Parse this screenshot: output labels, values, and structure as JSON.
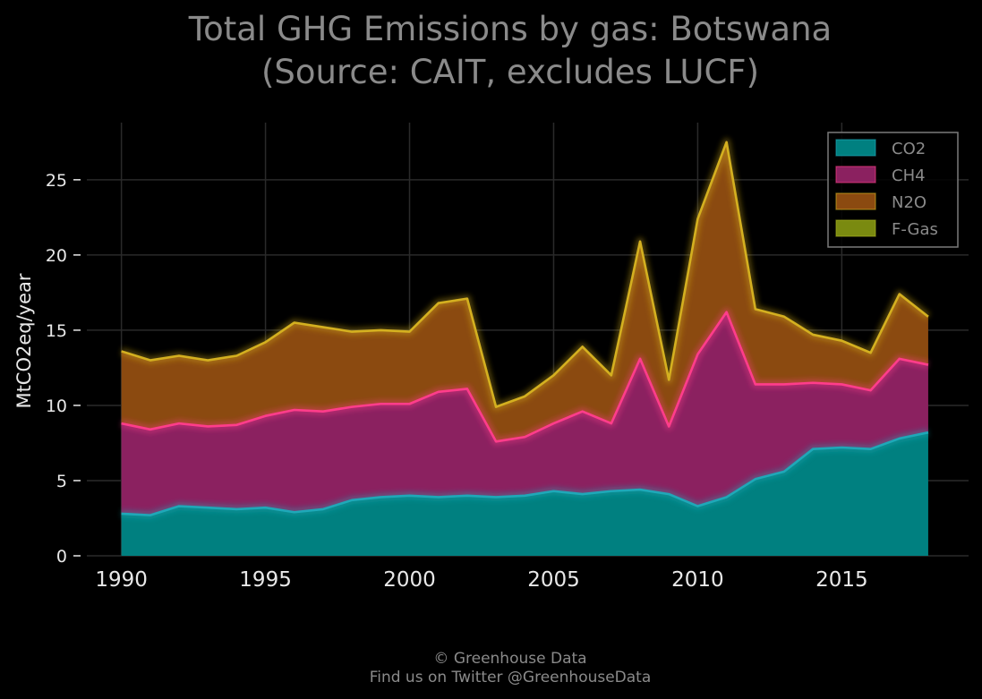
{
  "title_line1": "Total GHG Emissions by gas: Botswana",
  "title_line2": "(Source: CAIT, excludes LUCF)",
  "footer_line1": "© Greenhouse Data",
  "footer_line2": "Find us on Twitter @GreenhouseData",
  "colors": {
    "background": "#000000",
    "grid": "#2a2a2a",
    "axis_text": "#e8e8e8",
    "title_text": "#8a8a8a",
    "footer_text": "#8a8a8a",
    "legend_border": "#7a7a7a",
    "CO2": "#008080",
    "CO2_line": "#1fa8b8",
    "CH4": "#8b2160",
    "CH4_line": "#ff3d8b",
    "N2O": "#8b4a10",
    "N2O_line": "#d4b020",
    "F-Gas": "#7a8a10"
  },
  "chart_data": {
    "type": "area",
    "stacked": true,
    "ylabel": "MtCO2eq/year",
    "xlabel": "",
    "ylim": [
      0,
      28.8
    ],
    "xlim": [
      1988.8,
      2019.4
    ],
    "grid": true,
    "legend_position": "top-right",
    "x_ticks": [
      1990,
      1995,
      2000,
      2005,
      2010,
      2015
    ],
    "y_ticks": [
      0,
      5,
      10,
      15,
      20,
      25
    ],
    "x": [
      1990,
      1991,
      1992,
      1993,
      1994,
      1995,
      1996,
      1997,
      1998,
      1999,
      2000,
      2001,
      2002,
      2003,
      2004,
      2005,
      2006,
      2007,
      2008,
      2009,
      2010,
      2011,
      2012,
      2013,
      2014,
      2015,
      2016,
      2017,
      2018
    ],
    "series": [
      {
        "name": "CO2",
        "values": [
          2.8,
          2.7,
          3.3,
          3.2,
          3.1,
          3.2,
          2.9,
          3.1,
          3.7,
          3.9,
          4.0,
          3.9,
          4.0,
          3.9,
          4.0,
          4.3,
          4.1,
          4.3,
          4.4,
          4.1,
          3.3,
          3.9,
          5.1,
          5.6,
          7.1,
          7.2,
          7.1,
          7.8,
          8.2
        ]
      },
      {
        "name": "CH4",
        "values": [
          6.0,
          5.7,
          5.5,
          5.4,
          5.6,
          6.1,
          6.8,
          6.5,
          6.2,
          6.2,
          6.1,
          7.0,
          7.1,
          3.7,
          3.9,
          4.5,
          5.5,
          4.5,
          8.7,
          4.5,
          10.1,
          12.3,
          6.3,
          5.8,
          4.4,
          4.2,
          3.9,
          5.3,
          4.5
        ]
      },
      {
        "name": "N2O",
        "values": [
          4.8,
          4.6,
          4.5,
          4.4,
          4.6,
          4.9,
          5.8,
          5.6,
          5.0,
          4.9,
          4.8,
          5.9,
          6.0,
          2.3,
          2.7,
          3.2,
          4.3,
          3.2,
          7.8,
          3.1,
          9.0,
          11.3,
          5.0,
          4.5,
          3.2,
          2.9,
          2.5,
          4.3,
          3.2
        ]
      },
      {
        "name": "F-Gas",
        "values": [
          0,
          0,
          0,
          0,
          0,
          0,
          0,
          0,
          0,
          0,
          0,
          0,
          0,
          0,
          0,
          0,
          0,
          0,
          0,
          0,
          0,
          0,
          0,
          0,
          0,
          0,
          0,
          0,
          0
        ]
      }
    ]
  }
}
